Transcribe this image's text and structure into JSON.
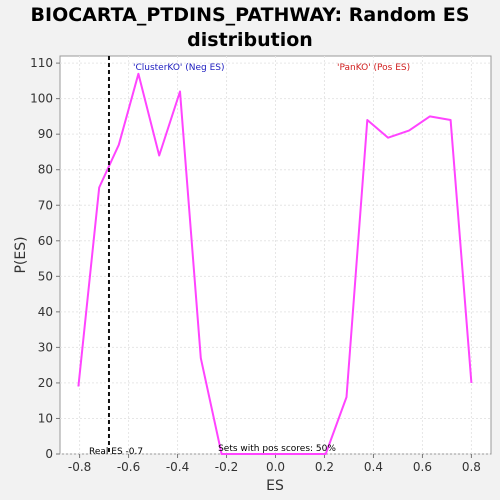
{
  "chart_data": {
    "type": "line",
    "title_line1": "BIOCARTA_PTDINS_PATHWAY: Random ES",
    "title_line2": "distribution",
    "xlabel": "ES",
    "ylabel": "P(ES)",
    "xlim": [
      -0.88,
      0.88
    ],
    "ylim": [
      0,
      112
    ],
    "x_ticks": [
      -0.8,
      -0.6,
      -0.4,
      -0.2,
      0.0,
      0.2,
      0.4,
      0.6,
      0.8
    ],
    "x_tick_labels": [
      "-0.8",
      "-0.6",
      "-0.4",
      "-0.2",
      "0.0",
      "0.2",
      "0.4",
      "0.6",
      "0.8"
    ],
    "y_ticks": [
      0,
      10,
      20,
      30,
      40,
      50,
      60,
      70,
      80,
      90,
      100,
      110
    ],
    "y_tick_labels": [
      "0",
      "10",
      "20",
      "30",
      "40",
      "50",
      "60",
      "70",
      "80",
      "90",
      "100",
      "110"
    ],
    "grid": true,
    "series": [
      {
        "color": "#ff44ff",
        "x": [
          -0.805,
          -0.72,
          -0.64,
          -0.56,
          -0.475,
          -0.39,
          -0.305,
          -0.22,
          -0.135,
          -0.05,
          0.035,
          0.12,
          0.205,
          0.29,
          0.375,
          0.46,
          0.545,
          0.63,
          0.715,
          0.8
        ],
        "y": [
          19,
          75,
          87,
          107,
          84,
          102,
          27,
          0,
          0,
          0,
          0,
          0,
          0,
          16,
          94,
          89,
          91,
          95,
          94,
          20
        ]
      }
    ],
    "observed_es": -0.68,
    "observed_es_label": "Real ES -0.7",
    "neg_label": "'ClusterKO' (Neg ES)",
    "neg_label_color": "#2020c0",
    "pos_label": "'PanKO' (Pos ES)",
    "pos_label_color": "#d02020",
    "bottom_note": "Sets with pos scores: 50%"
  }
}
